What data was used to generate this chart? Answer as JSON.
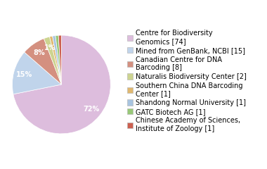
{
  "labels": [
    "Centre for Biodiversity\nGenomics [74]",
    "Mined from GenBank, NCBI [15]",
    "Canadian Centre for DNA\nBarcoding [8]",
    "Naturalis Biodiversity Center [2]",
    "Southern China DNA Barcoding\nCenter [1]",
    "Shandong Normal University [1]",
    "GATC Biotech AG [1]",
    "Chinese Academy of Sciences,\nInstitute of Zoology [1]"
  ],
  "values": [
    74,
    15,
    8,
    2,
    1,
    1,
    1,
    1
  ],
  "colors": [
    "#ddbddd",
    "#c0d4eb",
    "#d49080",
    "#cdd490",
    "#e0b870",
    "#a8c4e0",
    "#98c878",
    "#cc6050"
  ],
  "legend_fontsize": 7.0,
  "autopct_fontsize": 7.0
}
